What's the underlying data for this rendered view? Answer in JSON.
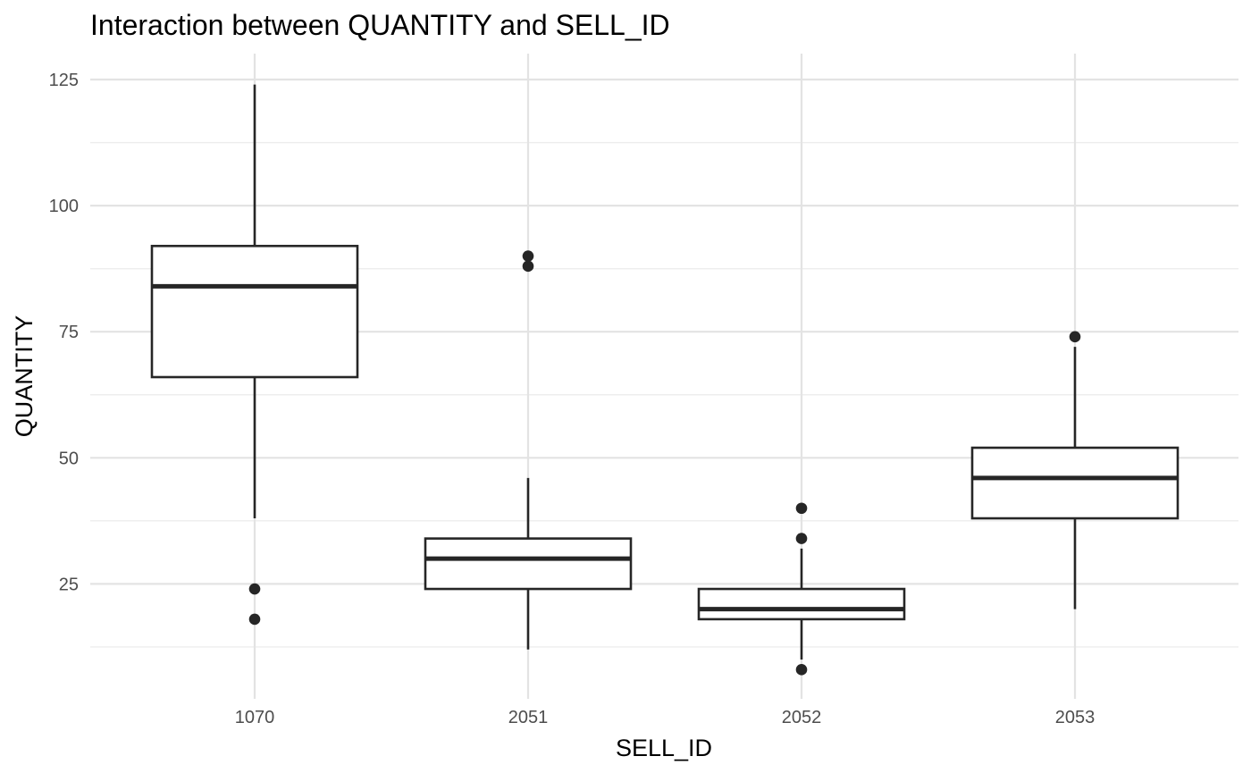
{
  "chart_data": {
    "type": "box",
    "title": "Interaction between QUANTITY and SELL_ID",
    "xlabel": "SELL_ID",
    "ylabel": "QUANTITY",
    "categories": [
      "1070",
      "2051",
      "2052",
      "2053"
    ],
    "ylim": [
      3,
      128.5
    ],
    "y_major_ticks": [
      25,
      50,
      75,
      100,
      125
    ],
    "y_minor_ticks": [
      12.5,
      37.5,
      62.5,
      87.5,
      112.5
    ],
    "grid": true,
    "legend": "none",
    "boxes": [
      {
        "category": "1070",
        "whisker_low": 38,
        "q1": 66,
        "median": 84,
        "q3": 92,
        "whisker_high": 124,
        "outliers": [
          24,
          18
        ]
      },
      {
        "category": "2051",
        "whisker_low": 12,
        "q1": 24,
        "median": 30,
        "q3": 34,
        "whisker_high": 46,
        "outliers": [
          90,
          88
        ]
      },
      {
        "category": "2052",
        "whisker_low": 10,
        "q1": 18,
        "median": 20,
        "q3": 24,
        "whisker_high": 32,
        "outliers": [
          40,
          34,
          8
        ]
      },
      {
        "category": "2053",
        "whisker_low": 20,
        "q1": 38,
        "median": 46,
        "q3": 52,
        "whisker_high": 72,
        "outliers": [
          74
        ]
      }
    ],
    "colors": {
      "box_outline": "#262626",
      "box_fill": "#ffffff",
      "grid": "#e3e3e3",
      "tick_text": "#4d4d4d"
    }
  }
}
